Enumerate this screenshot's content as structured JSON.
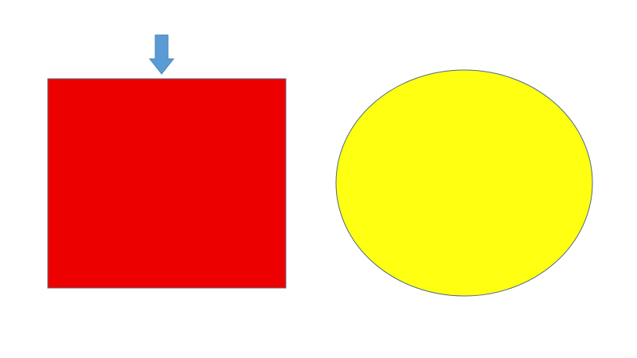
{
  "diagram": {
    "shapes": [
      {
        "shape": "square",
        "role": "red-square",
        "fill": "#EC0000",
        "stroke": "#5A6B7B"
      },
      {
        "shape": "ellipse",
        "role": "yellow-circle",
        "fill": "#FFFF12",
        "stroke": "#4F6B80"
      }
    ],
    "arrow": {
      "direction": "down",
      "points_to": "red-square",
      "fill": "#5B9BD5",
      "stroke": "#4A86B8"
    }
  }
}
